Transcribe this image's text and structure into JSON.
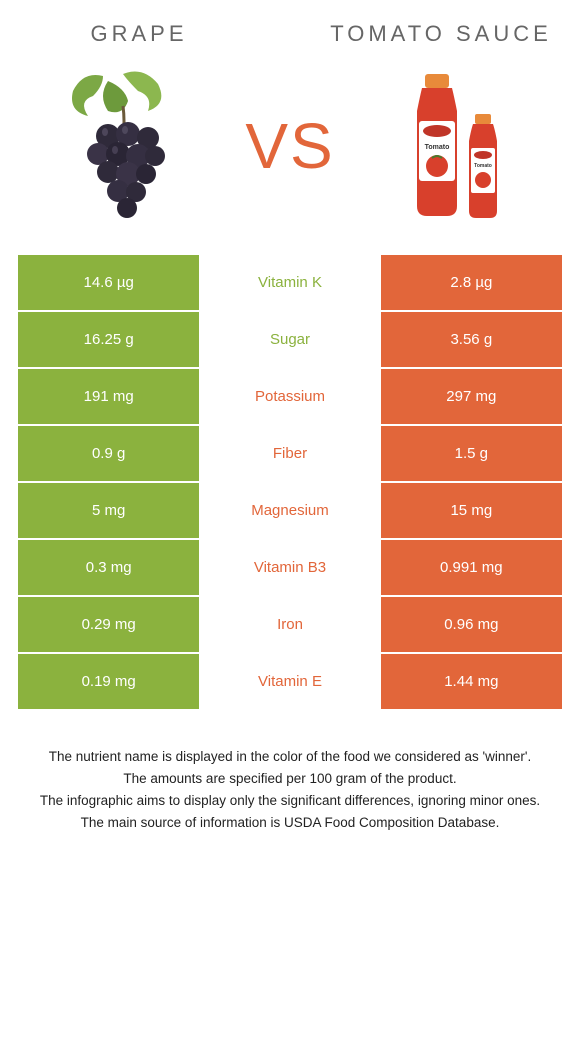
{
  "left": {
    "title": "GRAPE"
  },
  "right": {
    "title": "TOMATO SAUCE"
  },
  "vs": "VS",
  "colors": {
    "left_bg": "#8bb23e",
    "right_bg": "#e2663a",
    "mid_bg": "#ffffff",
    "grape_leaf": "#7ca845",
    "grape_fruit": "#2f2a3a",
    "ketchup_body": "#d8402c",
    "ketchup_cap": "#e88a3a",
    "ketchup_label": "#ffffff"
  },
  "rows": [
    {
      "left": "14.6 µg",
      "label": "Vitamin K",
      "right": "2.8 µg",
      "winner": "left"
    },
    {
      "left": "16.25 g",
      "label": "Sugar",
      "right": "3.56 g",
      "winner": "left"
    },
    {
      "left": "191 mg",
      "label": "Potassium",
      "right": "297 mg",
      "winner": "right"
    },
    {
      "left": "0.9 g",
      "label": "Fiber",
      "right": "1.5 g",
      "winner": "right"
    },
    {
      "left": "5 mg",
      "label": "Magnesium",
      "right": "15 mg",
      "winner": "right"
    },
    {
      "left": "0.3 mg",
      "label": "Vitamin B3",
      "right": "0.991 mg",
      "winner": "right"
    },
    {
      "left": "0.29 mg",
      "label": "Iron",
      "right": "0.96 mg",
      "winner": "right"
    },
    {
      "left": "0.19 mg",
      "label": "Vitamin E",
      "right": "1.44 mg",
      "winner": "right"
    }
  ],
  "footer": [
    "The nutrient name is displayed in the color of the food we considered as 'winner'.",
    "The amounts are specified per 100 gram of the product.",
    "The infographic aims to display only the significant differences, ignoring minor ones.",
    "The main source of information is USDA Food Composition Database."
  ]
}
